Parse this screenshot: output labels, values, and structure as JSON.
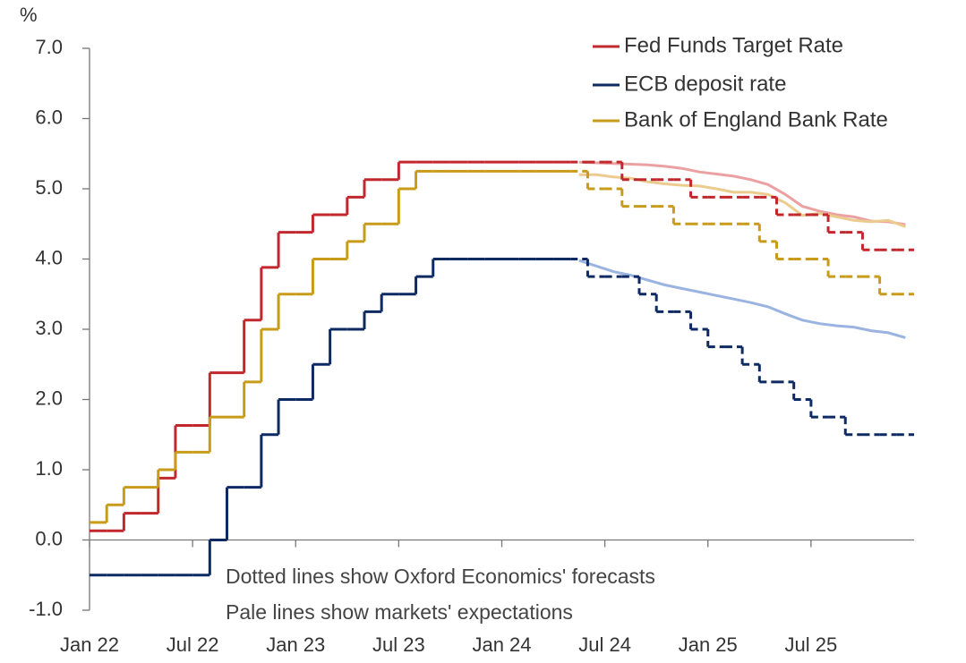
{
  "chart_data": {
    "type": "step-line",
    "y_unit_label": "%",
    "annotations": [
      "Dotted lines show Oxford Economics' forecasts",
      "Pale lines show markets' expectations"
    ],
    "categories": [
      "Jan 22",
      null,
      null,
      null,
      null,
      null,
      "Jul 22",
      null,
      null,
      null,
      null,
      null,
      "Jan 23",
      null,
      null,
      null,
      null,
      null,
      "Jul 23",
      null,
      null,
      null,
      null,
      null,
      "Jan 24",
      null,
      null,
      null,
      null,
      null,
      "Jul 24",
      null,
      null,
      null,
      null,
      null,
      "Jan 25",
      null,
      null,
      null,
      null,
      null,
      "Jul 25",
      null,
      null,
      null,
      null,
      null
    ],
    "ylim": [
      -1,
      7
    ],
    "yticks": [
      {
        "value": -1,
        "label": "-1.0"
      },
      {
        "value": 0,
        "label": "0.0"
      },
      {
        "value": 1,
        "label": "1.0"
      },
      {
        "value": 2,
        "label": "2.0"
      },
      {
        "value": 3,
        "label": "3.0"
      },
      {
        "value": 4,
        "label": "4.0"
      },
      {
        "value": 5,
        "label": "5.0"
      },
      {
        "value": 6,
        "label": "6.0"
      },
      {
        "value": 7,
        "label": "7.0"
      }
    ],
    "legend": "top-right",
    "series": [
      {
        "name": "Fed Funds Target Rate",
        "color": "#c0282d",
        "market_color": "#eba1a1",
        "values": [
          0.13,
          0.13,
          0.38,
          0.38,
          0.88,
          1.63,
          1.63,
          2.38,
          2.38,
          3.13,
          3.88,
          4.38,
          4.38,
          4.63,
          4.63,
          4.88,
          5.13,
          5.13,
          5.38,
          5.38,
          5.38,
          5.38,
          5.38,
          5.38,
          5.38,
          5.38,
          5.38,
          5.38,
          null,
          null,
          null,
          null,
          null,
          null,
          null,
          null,
          null,
          null,
          null,
          null,
          null,
          null,
          null,
          null,
          null,
          null,
          null,
          null
        ],
        "forecast": [
          null,
          null,
          null,
          null,
          null,
          null,
          null,
          null,
          null,
          null,
          null,
          null,
          null,
          null,
          null,
          null,
          null,
          null,
          null,
          null,
          null,
          null,
          null,
          null,
          null,
          null,
          null,
          null,
          5.38,
          5.38,
          5.38,
          5.13,
          5.13,
          5.13,
          5.13,
          4.88,
          4.88,
          4.88,
          4.88,
          4.88,
          4.63,
          4.63,
          4.63,
          4.38,
          4.38,
          4.13,
          4.13,
          4.13
        ],
        "market": [
          null,
          null,
          null,
          null,
          null,
          null,
          null,
          null,
          null,
          null,
          null,
          null,
          null,
          null,
          null,
          null,
          null,
          null,
          null,
          null,
          null,
          null,
          null,
          null,
          null,
          null,
          null,
          null,
          5.38,
          5.37,
          5.36,
          5.35,
          5.34,
          5.32,
          5.29,
          5.24,
          5.21,
          5.18,
          5.13,
          5.06,
          4.92,
          4.75,
          4.68,
          4.63,
          4.6,
          4.54,
          4.53,
          4.49
        ]
      },
      {
        "name": "ECB deposit rate",
        "color": "#0e2a62",
        "market_color": "#9ab3e0",
        "values": [
          -0.5,
          -0.5,
          -0.5,
          -0.5,
          -0.5,
          -0.5,
          -0.5,
          0,
          0.75,
          0.75,
          1.5,
          2.0,
          2.0,
          2.5,
          3.0,
          3.0,
          3.25,
          3.5,
          3.5,
          3.75,
          4.0,
          4.0,
          4.0,
          4.0,
          4.0,
          4.0,
          4.0,
          4.0,
          null,
          null,
          null,
          null,
          null,
          null,
          null,
          null,
          null,
          null,
          null,
          null,
          null,
          null,
          null,
          null,
          null,
          null,
          null,
          null
        ],
        "forecast": [
          null,
          null,
          null,
          null,
          null,
          null,
          null,
          null,
          null,
          null,
          null,
          null,
          null,
          null,
          null,
          null,
          null,
          null,
          null,
          null,
          null,
          null,
          null,
          null,
          null,
          null,
          null,
          null,
          4.0,
          3.75,
          3.75,
          3.75,
          3.5,
          3.25,
          3.25,
          3.0,
          2.75,
          2.75,
          2.5,
          2.25,
          2.25,
          2.0,
          1.75,
          1.75,
          1.5,
          1.5,
          1.5,
          1.5
        ],
        "market": [
          null,
          null,
          null,
          null,
          null,
          null,
          null,
          null,
          null,
          null,
          null,
          null,
          null,
          null,
          null,
          null,
          null,
          null,
          null,
          null,
          null,
          null,
          null,
          null,
          null,
          null,
          null,
          null,
          3.98,
          3.9,
          3.82,
          3.77,
          3.7,
          3.63,
          3.58,
          3.53,
          3.48,
          3.43,
          3.38,
          3.32,
          3.22,
          3.13,
          3.08,
          3.05,
          3.03,
          2.98,
          2.95,
          2.88
        ]
      },
      {
        "name": "Bank of England Bank Rate",
        "color": "#c89b1a",
        "market_color": "#ebcb8e",
        "values": [
          0.25,
          0.5,
          0.75,
          0.75,
          1.0,
          1.25,
          1.25,
          1.75,
          1.75,
          2.25,
          3.0,
          3.5,
          3.5,
          4.0,
          4.0,
          4.25,
          4.5,
          4.5,
          5.0,
          5.25,
          5.25,
          5.25,
          5.25,
          5.25,
          5.25,
          5.25,
          5.25,
          5.25,
          null,
          null,
          null,
          null,
          null,
          null,
          null,
          null,
          null,
          null,
          null,
          null,
          null,
          null,
          null,
          null,
          null,
          null,
          null,
          null
        ],
        "forecast": [
          null,
          null,
          null,
          null,
          null,
          null,
          null,
          null,
          null,
          null,
          null,
          null,
          null,
          null,
          null,
          null,
          null,
          null,
          null,
          null,
          null,
          null,
          null,
          null,
          null,
          null,
          null,
          null,
          5.25,
          5.0,
          5.0,
          4.75,
          4.75,
          4.75,
          4.5,
          4.5,
          4.5,
          4.5,
          4.5,
          4.25,
          4.0,
          4.0,
          4.0,
          3.75,
          3.75,
          3.75,
          3.5,
          3.5
        ],
        "market": [
          null,
          null,
          null,
          null,
          null,
          null,
          null,
          null,
          null,
          null,
          null,
          null,
          null,
          null,
          null,
          null,
          null,
          null,
          null,
          null,
          null,
          null,
          null,
          null,
          null,
          null,
          null,
          null,
          5.2,
          5.2,
          5.17,
          5.15,
          5.1,
          5.07,
          5.05,
          5.04,
          5.0,
          4.95,
          4.95,
          4.92,
          4.8,
          4.62,
          4.65,
          4.6,
          4.55,
          4.53,
          4.55,
          4.46
        ]
      }
    ]
  }
}
